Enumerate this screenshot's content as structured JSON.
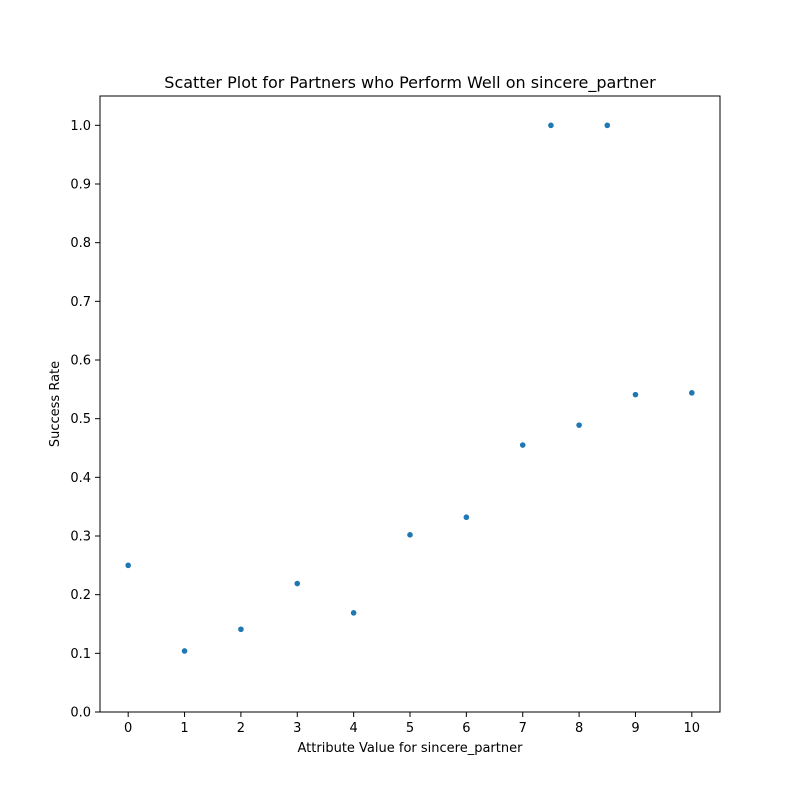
{
  "chart_data": {
    "type": "scatter",
    "title": "Scatter Plot for Partners who Perform Well on sincere_partner",
    "xlabel": "Attribute Value for sincere_partner",
    "ylabel": "Success Rate",
    "xlim": [
      -0.5,
      10.5
    ],
    "ylim": [
      0.0,
      1.05
    ],
    "xticks": [
      0,
      1,
      2,
      3,
      4,
      5,
      6,
      7,
      8,
      9,
      10
    ],
    "yticks": [
      0.0,
      0.1,
      0.2,
      0.3,
      0.4,
      0.5,
      0.6,
      0.7,
      0.8,
      0.9,
      1.0
    ],
    "xtick_labels": [
      "0",
      "1",
      "2",
      "3",
      "4",
      "5",
      "6",
      "7",
      "8",
      "9",
      "10"
    ],
    "ytick_labels": [
      "0.0",
      "0.1",
      "0.2",
      "0.3",
      "0.4",
      "0.5",
      "0.6",
      "0.7",
      "0.8",
      "0.9",
      "1.0"
    ],
    "grid": false,
    "point_color": "#1f77b4",
    "series": [
      {
        "points": [
          {
            "x": 0,
            "y": 0.25
          },
          {
            "x": 1,
            "y": 0.104
          },
          {
            "x": 2,
            "y": 0.141
          },
          {
            "x": 3,
            "y": 0.219
          },
          {
            "x": 4,
            "y": 0.169
          },
          {
            "x": 5,
            "y": 0.302
          },
          {
            "x": 6,
            "y": 0.332
          },
          {
            "x": 7,
            "y": 0.455
          },
          {
            "x": 7.5,
            "y": 1.0
          },
          {
            "x": 8,
            "y": 0.489
          },
          {
            "x": 8.5,
            "y": 1.0
          },
          {
            "x": 9,
            "y": 0.541
          },
          {
            "x": 10,
            "y": 0.544
          }
        ]
      }
    ]
  }
}
